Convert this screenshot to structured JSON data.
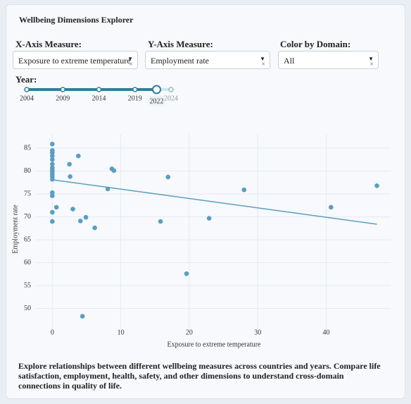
{
  "header": {
    "title": "Wellbeing Dimensions Explorer"
  },
  "controls": {
    "x_measure": {
      "label": "X-Axis Measure:",
      "value": "Exposure to extreme temperature"
    },
    "y_measure": {
      "label": "Y-Axis Measure:",
      "value": "Employment rate"
    },
    "domain": {
      "label": "Color by Domain:",
      "value": "All"
    },
    "year": {
      "label": "Year:",
      "min": 2004,
      "max": 2024,
      "marks": [
        2004,
        2009,
        2014,
        2019,
        2024
      ],
      "value": 2022
    }
  },
  "chart_data": {
    "type": "scatter",
    "x_label": "Exposure to extreme temperature",
    "y_label": "Employment rate",
    "color": "#5a9ebf",
    "grid": true,
    "xlim": [
      -2.5,
      49.4
    ],
    "ylim": [
      45,
      88.1
    ],
    "xticks": [
      0,
      10,
      20,
      30,
      40
    ],
    "yticks": [
      50,
      55,
      60,
      65,
      70,
      75,
      80,
      85
    ],
    "x": [
      0,
      0,
      0,
      0,
      0,
      0,
      0,
      0,
      0,
      0,
      0,
      0,
      0,
      0,
      0,
      0,
      0.6,
      2.5,
      2.6,
      3.0,
      3.8,
      4.1,
      4.4,
      4.9,
      6.2,
      8.1,
      8.7,
      9.0,
      15.8,
      16.9,
      19.6,
      22.9,
      28.0,
      40.7,
      47.4
    ],
    "values": [
      85.9,
      84.5,
      84.0,
      83.3,
      82.5,
      81.5,
      80.7,
      80.2,
      79.8,
      79.3,
      78.8,
      78.2,
      75.3,
      74.6,
      71.0,
      69.0,
      72.1,
      81.5,
      78.8,
      71.7,
      83.3,
      69.1,
      48.3,
      69.9,
      67.6,
      76.1,
      80.5,
      80.1,
      69.0,
      78.7,
      57.6,
      69.7,
      75.9,
      72.1,
      76.8
    ],
    "trendline": {
      "x": [
        0,
        47.4
      ],
      "values": [
        78.1,
        68.4
      ]
    }
  },
  "description": {
    "text": "Explore relationships between different wellbeing measures across countries and years. Compare life satisfaction, employment, health, safety, and other dimensions to understand cross-domain connections in quality of life."
  }
}
